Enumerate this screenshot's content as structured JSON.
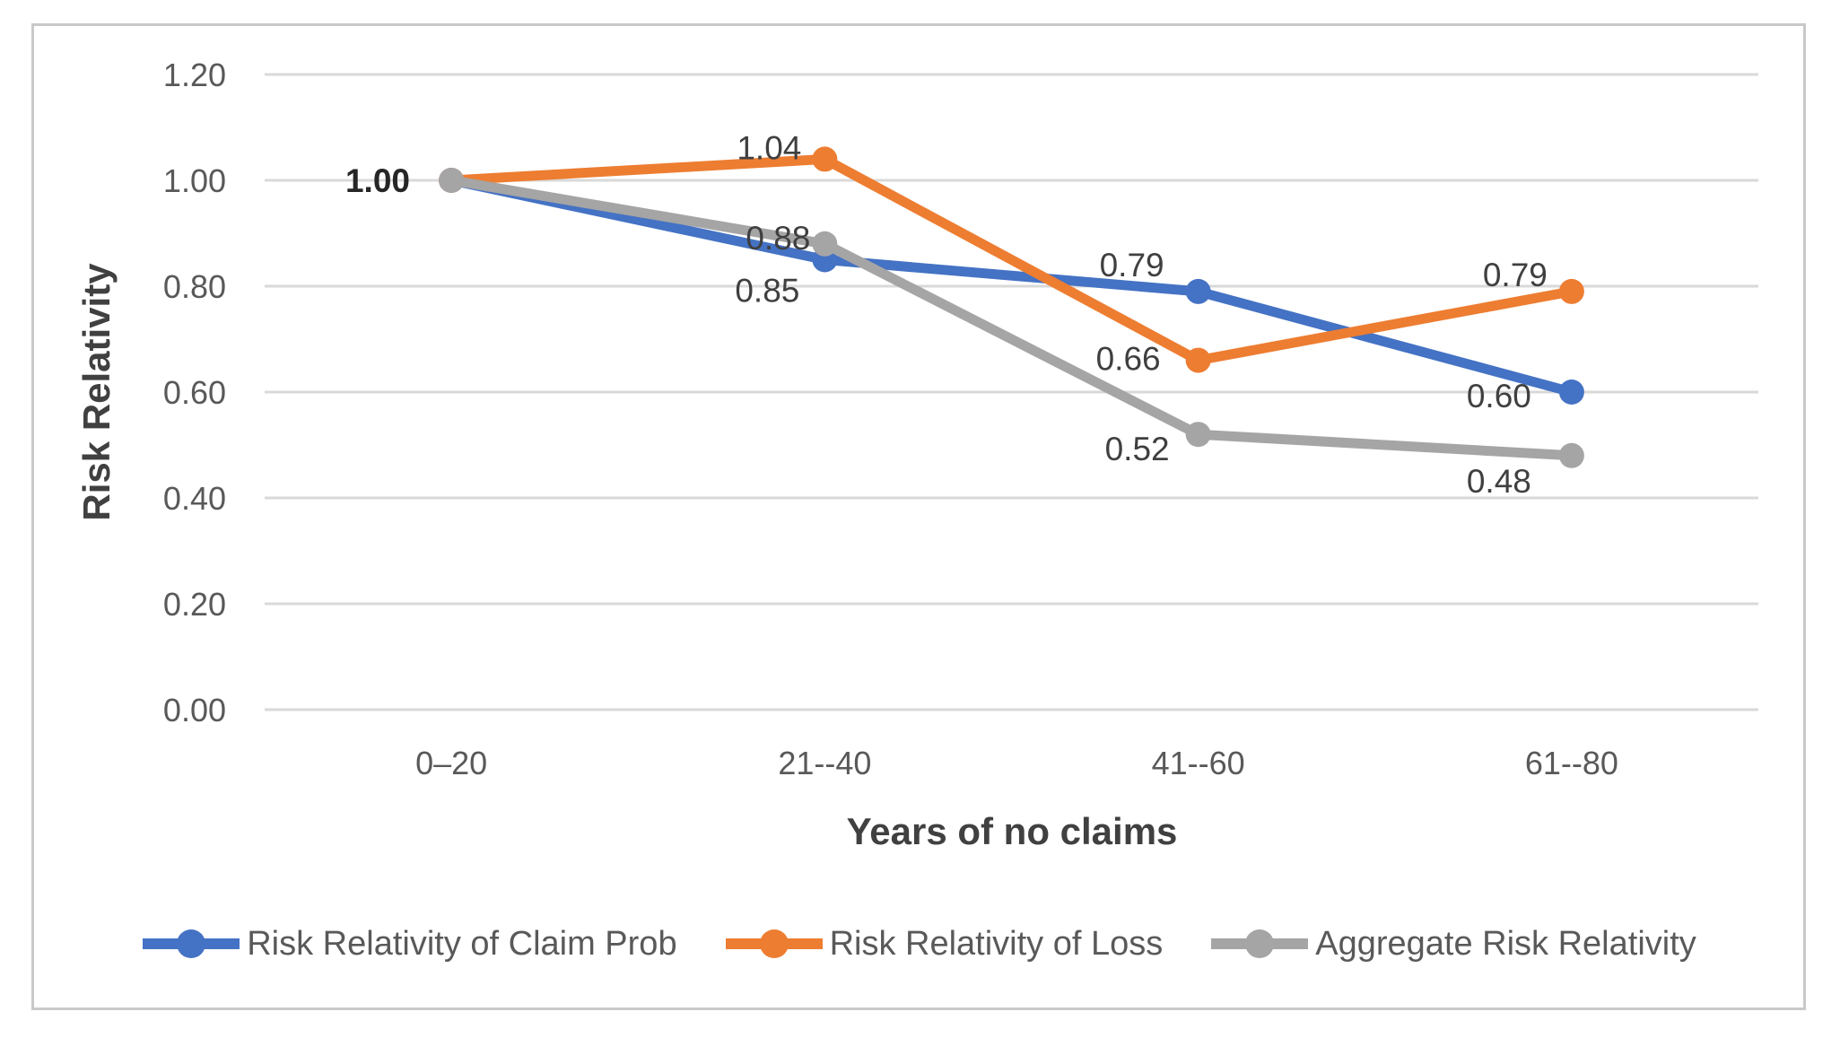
{
  "chart_data": {
    "type": "line",
    "title": "",
    "categories": [
      "0–20",
      "21--40",
      "41--60",
      "61--80"
    ],
    "series": [
      {
        "name": "Risk Relativity of Claim Prob",
        "color": "#4472C4",
        "values": [
          1.0,
          0.85,
          0.79,
          0.6
        ],
        "point_labels": [
          null,
          "0.85",
          "0.79",
          "0.60"
        ]
      },
      {
        "name": "Risk Relativity of Loss",
        "color": "#ED7D31",
        "values": [
          1.0,
          1.04,
          0.66,
          0.79
        ],
        "point_labels": [
          null,
          "1.04",
          "0.66",
          "0.79"
        ]
      },
      {
        "name": "Aggregate Risk Relativity",
        "color": "#A5A5A5",
        "values": [
          1.0,
          0.88,
          0.52,
          0.48
        ],
        "point_labels": [
          null,
          "0.88",
          "0.52",
          "0.48"
        ]
      }
    ],
    "shared_start_label": "1.00",
    "xlabel": "Years of no claims",
    "ylabel": "Risk Relativity",
    "ylim": [
      0,
      1.2
    ],
    "ytick_step": 0.2,
    "yticks": [
      "0.00",
      "0.20",
      "0.40",
      "0.60",
      "0.80",
      "1.00",
      "1.20"
    ],
    "grid": true,
    "legend_position": "bottom"
  },
  "style": {
    "gridline_color": "#D9D9D9",
    "tick_label_color": "#595959",
    "data_label_color": "#3F3F3F",
    "axis_title_color": "#404040",
    "frame_border_color": "#C9C9C9",
    "background": "#FFFFFF"
  }
}
